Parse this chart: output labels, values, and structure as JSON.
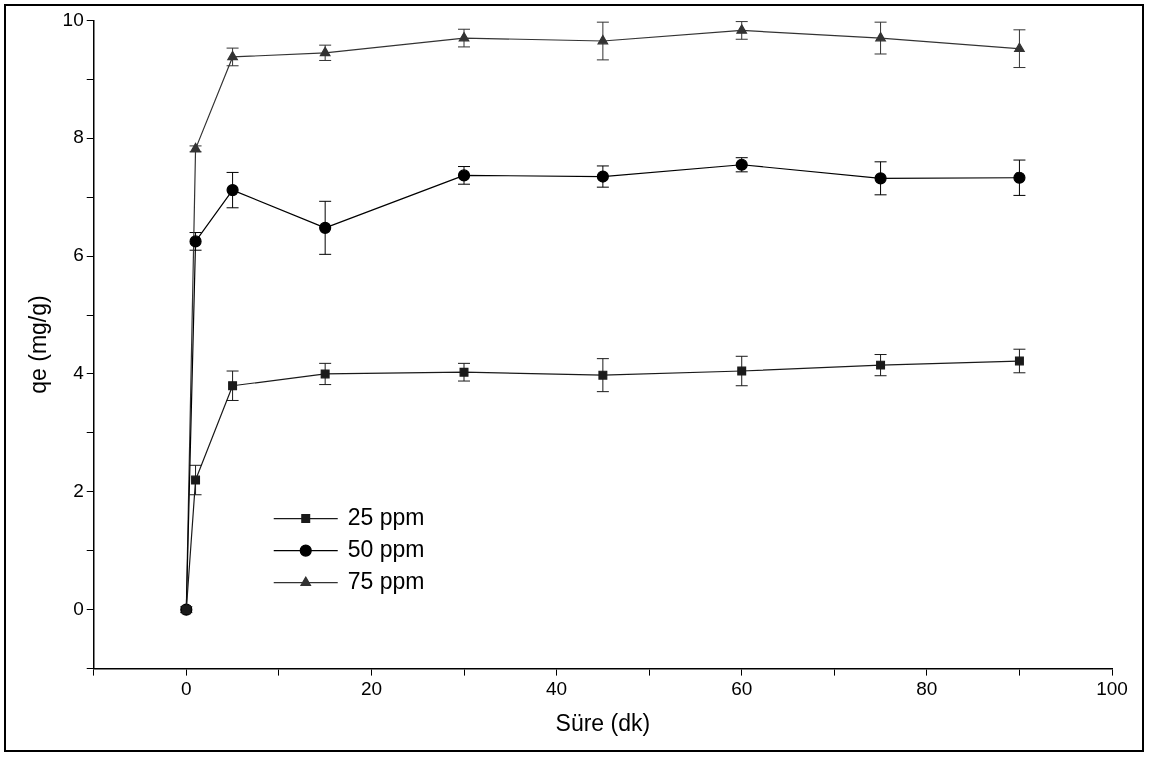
{
  "chart_data": {
    "type": "line",
    "xlabel": "Süre (dk)",
    "ylabel": "qe (mg/g)",
    "x": [
      0,
      1,
      5,
      15,
      30,
      45,
      60,
      75,
      90
    ],
    "series": [
      {
        "name": "25 ppm",
        "color": "#1a1a1a",
        "marker": "square",
        "values": [
          0,
          2.2,
          3.8,
          4.0,
          4.03,
          3.98,
          4.05,
          4.15,
          4.22
        ],
        "errors": [
          0.05,
          0.25,
          0.25,
          0.18,
          0.15,
          0.28,
          0.25,
          0.18,
          0.2
        ]
      },
      {
        "name": "50 ppm",
        "color": "#000000",
        "marker": "circle",
        "values": [
          0,
          6.25,
          7.12,
          6.48,
          7.37,
          7.35,
          7.55,
          7.32,
          7.33
        ],
        "errors": [
          null,
          0.15,
          0.3,
          0.45,
          0.15,
          0.18,
          0.12,
          0.28,
          0.3
        ]
      },
      {
        "name": "75 ppm",
        "color": "#333333",
        "marker": "triangle",
        "values": [
          0,
          7.82,
          9.38,
          9.45,
          9.7,
          9.65,
          9.83,
          9.7,
          9.52
        ],
        "errors": [
          null,
          0.05,
          0.15,
          0.13,
          0.15,
          0.32,
          0.15,
          0.27,
          0.32
        ]
      }
    ],
    "xlim": [
      -10,
      100
    ],
    "xticks": [
      {
        "value": -10,
        "label": null
      },
      0,
      {
        "value": 10,
        "label": null
      },
      20,
      {
        "value": 30,
        "label": null
      },
      40,
      {
        "value": 50,
        "label": null
      },
      60,
      {
        "value": 70,
        "label": null
      },
      80,
      {
        "value": 90,
        "label": null
      },
      100
    ],
    "ylim": [
      -1,
      10
    ],
    "yticks": [
      {
        "value": -1,
        "label": null
      },
      0,
      {
        "value": 1,
        "label": null
      },
      2,
      {
        "value": 3,
        "label": null
      },
      4,
      {
        "value": 5,
        "label": null
      },
      6,
      {
        "value": 7,
        "label": null
      },
      8,
      {
        "value": 9,
        "label": null
      },
      10
    ],
    "grid": false,
    "legend": "bottom left",
    "line_style": "solid"
  }
}
